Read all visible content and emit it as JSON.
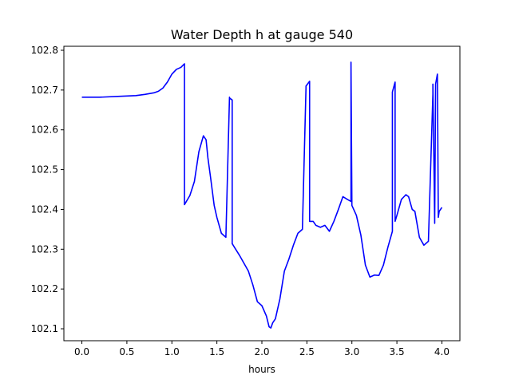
{
  "chart_data": {
    "type": "line",
    "title": "Water Depth h at gauge 540",
    "xlabel": "hours",
    "ylabel": "",
    "xlim": [
      -0.2,
      4.2
    ],
    "ylim": [
      102.07,
      102.81
    ],
    "xticks": [
      0.0,
      0.5,
      1.0,
      1.5,
      2.0,
      2.5,
      3.0,
      3.5,
      4.0
    ],
    "xtick_labels": [
      "0.0",
      "0.5",
      "1.0",
      "1.5",
      "2.0",
      "2.5",
      "3.0",
      "3.5",
      "4.0"
    ],
    "yticks": [
      102.1,
      102.2,
      102.3,
      102.4,
      102.5,
      102.6,
      102.7,
      102.8
    ],
    "ytick_labels": [
      "102.1",
      "102.2",
      "102.3",
      "102.4",
      "102.5",
      "102.6",
      "102.7",
      "102.8"
    ],
    "grid": false,
    "series": [
      {
        "color": "#0000ff",
        "x": [
          0.0,
          0.2,
          0.4,
          0.6,
          0.7,
          0.8,
          0.85,
          0.9,
          0.95,
          1.0,
          1.05,
          1.1,
          1.14,
          1.14,
          1.2,
          1.25,
          1.3,
          1.35,
          1.38,
          1.4,
          1.43,
          1.47,
          1.5,
          1.55,
          1.6,
          1.64,
          1.64,
          1.67,
          1.67,
          1.7,
          1.75,
          1.8,
          1.85,
          1.9,
          1.95,
          2.0,
          2.05,
          2.08,
          2.1,
          2.12,
          2.15,
          2.2,
          2.25,
          2.3,
          2.35,
          2.4,
          2.45,
          2.49,
          2.49,
          2.53,
          2.53,
          2.57,
          2.6,
          2.65,
          2.7,
          2.75,
          2.8,
          2.85,
          2.9,
          2.95,
          2.99,
          2.99,
          3.0,
          3.05,
          3.1,
          3.15,
          3.2,
          3.25,
          3.3,
          3.35,
          3.4,
          3.45,
          3.45,
          3.48,
          3.48,
          3.5,
          3.55,
          3.6,
          3.63,
          3.67,
          3.7,
          3.75,
          3.8,
          3.85,
          3.9,
          3.9,
          3.92,
          3.93,
          3.95,
          3.96,
          3.97,
          4.0
        ],
        "y": [
          102.682,
          102.682,
          102.684,
          102.686,
          102.689,
          102.693,
          102.697,
          102.705,
          102.72,
          102.74,
          102.752,
          102.757,
          102.766,
          102.412,
          102.435,
          102.47,
          102.545,
          102.585,
          102.575,
          102.53,
          102.48,
          102.41,
          102.38,
          102.34,
          102.33,
          102.682,
          102.68,
          102.675,
          102.314,
          102.303,
          102.285,
          102.265,
          102.245,
          102.21,
          102.168,
          102.158,
          102.132,
          102.105,
          102.102,
          102.115,
          102.125,
          102.175,
          102.245,
          102.275,
          102.31,
          102.34,
          102.35,
          102.705,
          102.71,
          102.722,
          102.37,
          102.37,
          102.36,
          102.355,
          102.36,
          102.345,
          102.37,
          102.4,
          102.432,
          102.425,
          102.42,
          102.77,
          102.41,
          102.385,
          102.335,
          102.26,
          102.23,
          102.235,
          102.234,
          102.26,
          102.305,
          102.345,
          102.695,
          102.72,
          102.37,
          102.385,
          102.425,
          102.437,
          102.432,
          102.4,
          102.395,
          102.33,
          102.31,
          102.32,
          102.69,
          102.715,
          102.365,
          102.715,
          102.74,
          102.38,
          102.395,
          102.405
        ]
      }
    ]
  }
}
